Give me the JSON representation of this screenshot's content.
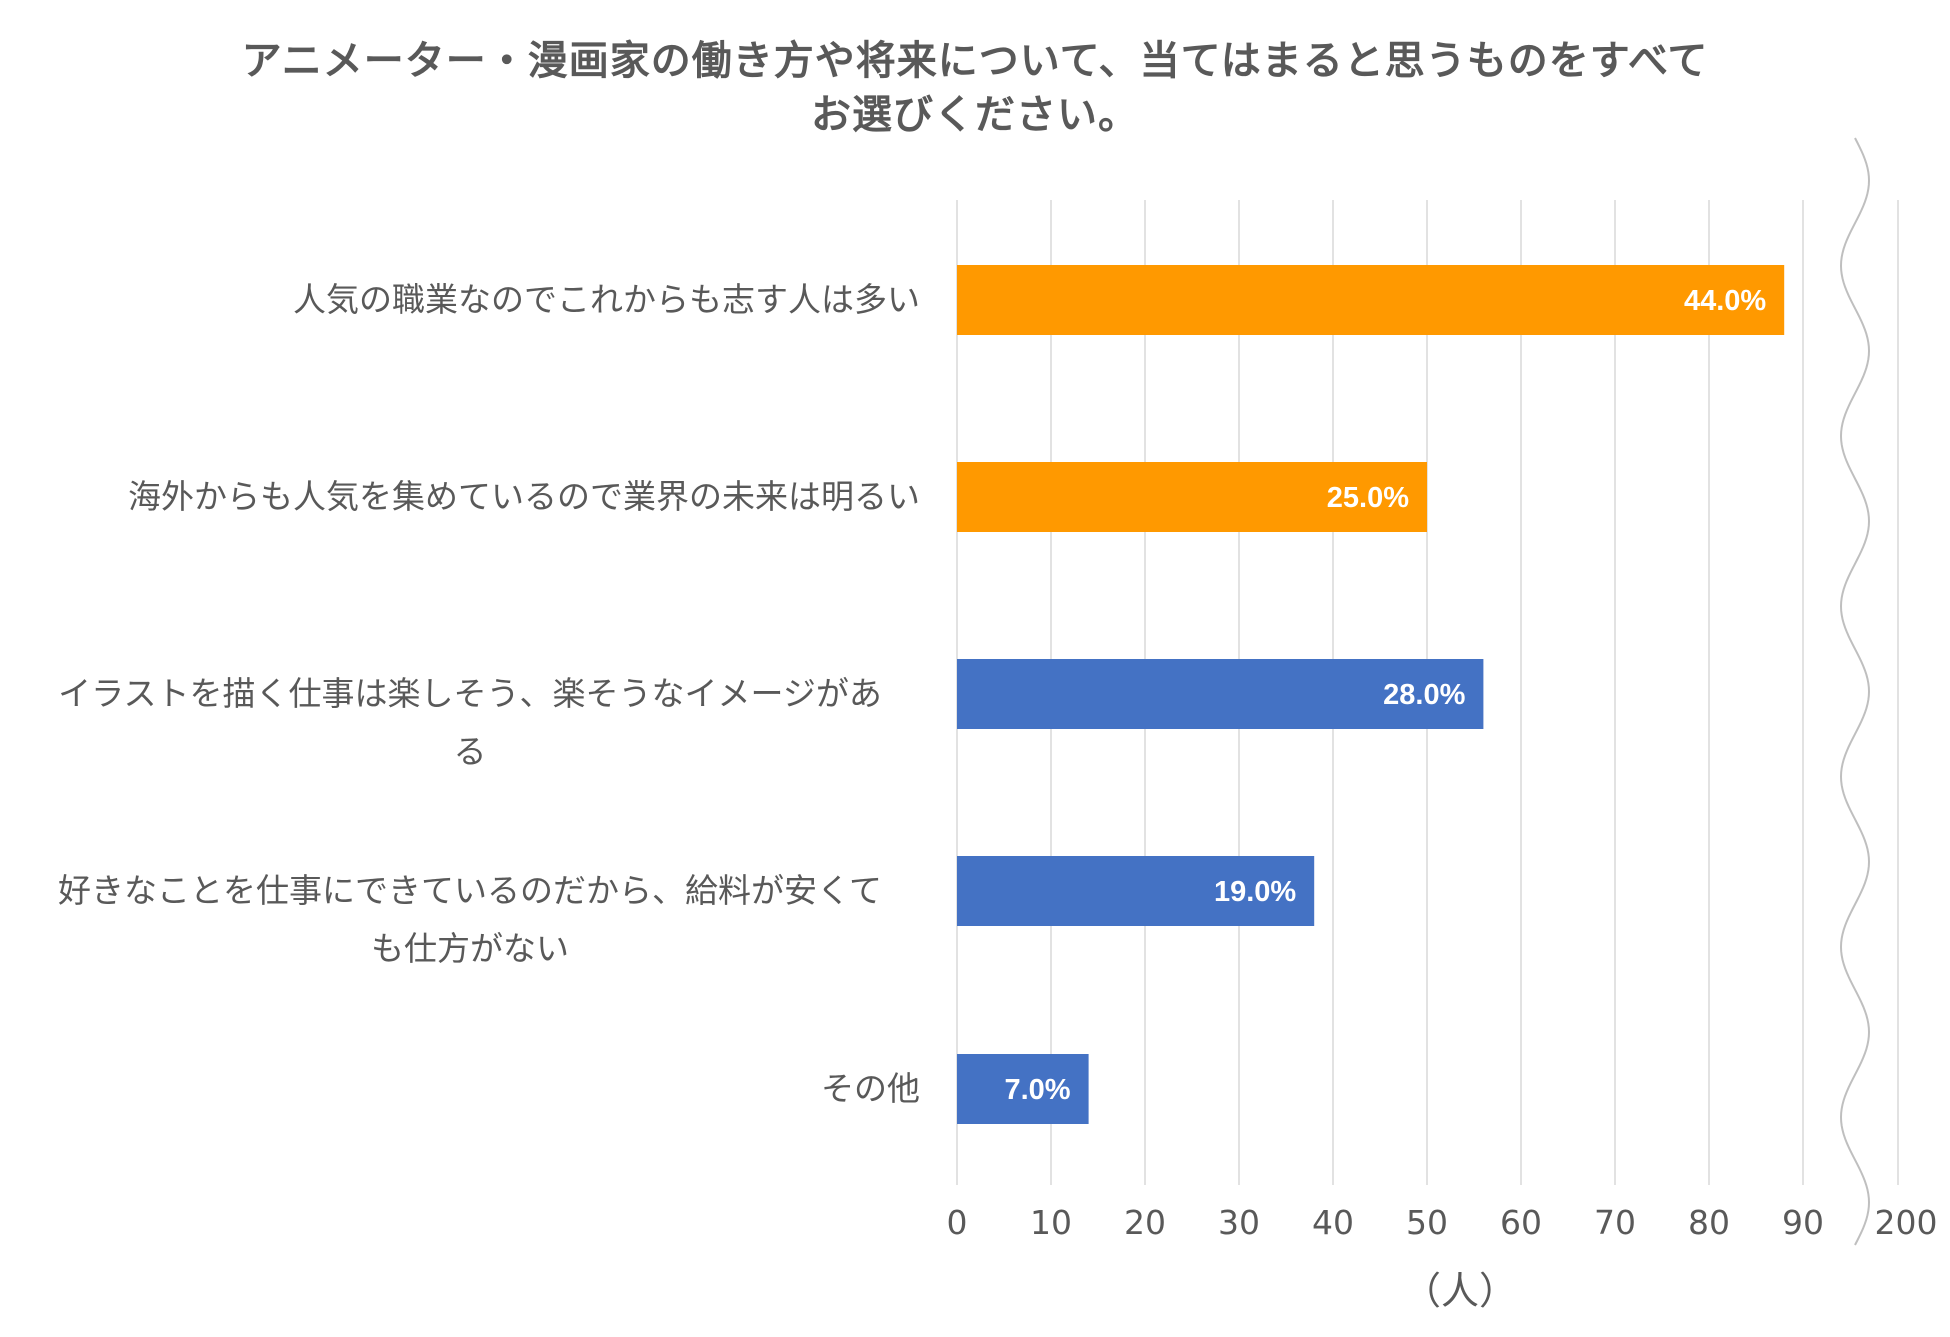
{
  "chart_data": {
    "type": "bar",
    "orientation": "horizontal",
    "title": "アニメーター・漫画家の働き方や将来について、当てはまると思うものをすべてお選びください。",
    "title_lines": [
      "アニメーター・漫画家の働き方や将来について、当てはまると思うものをすべて",
      "お選びください。"
    ],
    "categories": [
      "人気の職業なのでこれからも志す人は多い",
      "海外からも人気を集めているので業界の未来は明るい",
      "イラストを描く仕事は楽しそう、楽そうなイメージがある",
      "好きなことを仕事にできているのだから、給料が安くても仕方がない",
      "その他"
    ],
    "category_lines": [
      [
        "人気の職業なのでこれからも志す人は多い"
      ],
      [
        "海外からも人気を集めているので業界の未来は明るい"
      ],
      [
        "イラストを描く仕事は楽しそう、楽そうなイメージがあ",
        "る"
      ],
      [
        "好きなことを仕事にできているのだから、給料が安くて",
        "も仕方がない"
      ],
      [
        "その他"
      ]
    ],
    "values": [
      88,
      50,
      56,
      38,
      14
    ],
    "data_labels": [
      "44.0%",
      "25.0%",
      "28.0%",
      "19.0%",
      "7.0%"
    ],
    "bar_colors": [
      "#FF9900",
      "#FF9900",
      "#4472C4",
      "#4472C4",
      "#4472C4"
    ],
    "xlim": [
      0,
      90
    ],
    "axis_break_value": 200,
    "xticks": [
      0,
      10,
      20,
      30,
      40,
      50,
      60,
      70,
      80,
      90
    ],
    "xtick_labels": [
      "0",
      "10",
      "20",
      "30",
      "40",
      "50",
      "60",
      "70",
      "80",
      "90"
    ],
    "break_tick_label": "200",
    "xlabel": "（人）",
    "grid": true
  },
  "colors": {
    "grid": "#D9D9D9",
    "text": "#595959",
    "break_line": "#BFBFBF"
  }
}
